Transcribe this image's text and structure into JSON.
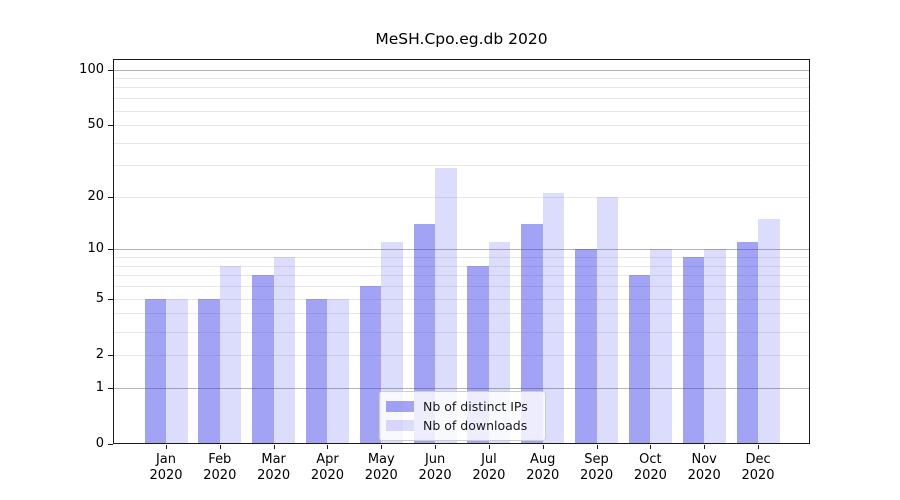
{
  "chart_data": {
    "type": "bar",
    "title": "MeSH.Cpo.eg.db 2020",
    "categories": [
      "Jan",
      "Feb",
      "Mar",
      "Apr",
      "May",
      "Jun",
      "Jul",
      "Aug",
      "Sep",
      "Oct",
      "Nov",
      "Dec"
    ],
    "x_year_label": "2020",
    "series": [
      {
        "name": "Nb of distinct IPs",
        "color": "rgba(50,50,235,0.45)",
        "values": [
          5,
          5,
          7,
          5,
          6,
          14,
          8,
          14,
          10,
          7,
          9,
          11
        ]
      },
      {
        "name": "Nb of downloads",
        "color": "rgba(50,50,235,0.17)",
        "values": [
          5,
          8,
          9,
          5,
          11,
          29,
          11,
          21,
          20,
          10,
          10,
          15
        ]
      }
    ],
    "yscale": "log1p",
    "yticks": [
      0,
      1,
      2,
      5,
      10,
      20,
      50,
      100
    ],
    "grid_major": [
      1,
      10,
      100
    ],
    "grid_minor": [
      2,
      3,
      4,
      5,
      6,
      7,
      8,
      9,
      20,
      30,
      40,
      50,
      60,
      70,
      80,
      90
    ],
    "ylim": [
      0,
      115
    ],
    "grid": true,
    "legend_position": "lower center"
  }
}
